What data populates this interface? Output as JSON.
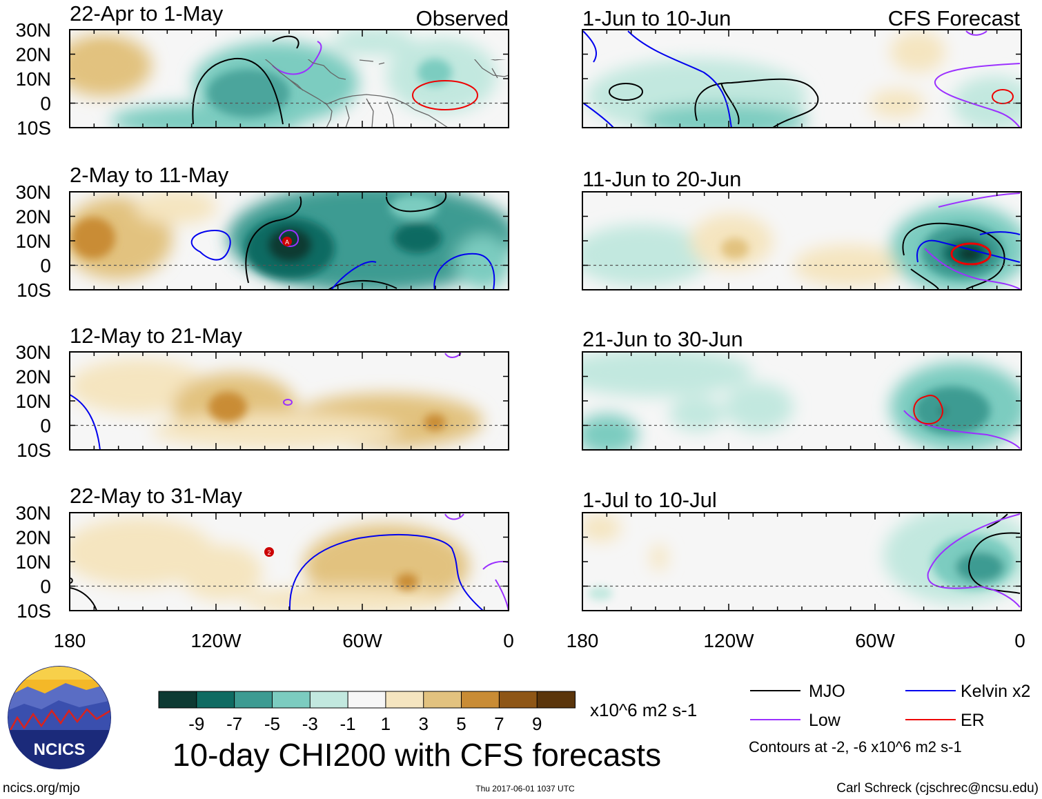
{
  "panels": [
    {
      "period": "22-Apr to 1-May",
      "tag": "Observed"
    },
    {
      "period": "2-May to 11-May",
      "tag": ""
    },
    {
      "period": "12-May to 21-May",
      "tag": ""
    },
    {
      "period": "22-May to 31-May",
      "tag": ""
    },
    {
      "period": "1-Jun to 10-Jun",
      "tag": "CFS Forecast"
    },
    {
      "period": "11-Jun to 20-Jun",
      "tag": ""
    },
    {
      "period": "21-Jun to 30-Jun",
      "tag": ""
    },
    {
      "period": "1-Jul to 10-Jul",
      "tag": ""
    }
  ],
  "lat_labels": [
    "30N",
    "20N",
    "10N",
    "0",
    "10S"
  ],
  "lon_labels": [
    "180",
    "120W",
    "60W",
    "0"
  ],
  "colorbar": {
    "colors": [
      "#0d3a33",
      "#0f6b62",
      "#3d9b92",
      "#7cccc0",
      "#c2e8df",
      "#f6f6f6",
      "#f5e5c0",
      "#e2c27f",
      "#c98c35",
      "#8e5616",
      "#5a350b"
    ],
    "labels": [
      "-9",
      "-7",
      "-5",
      "-3",
      "-1",
      "1",
      "3",
      "5",
      "7",
      "9"
    ],
    "units": "x10^6 m2 s-1"
  },
  "legend": {
    "items": [
      {
        "name": "MJO",
        "color": "#000000"
      },
      {
        "name": "Kelvin x2",
        "color": "#0000ee"
      },
      {
        "name": "Low",
        "color": "#9b30ff"
      },
      {
        "name": "ER",
        "color": "#ee0000"
      }
    ],
    "contour_note": "Contours at -2, -6 x10^6 m2 s-1"
  },
  "logo": {
    "text": "NCICS"
  },
  "title": "10-day CHI200 with CFS forecasts",
  "footer": {
    "url": "ncics.org/mjo",
    "timestamp": "Thu 2017-06-01 1037 UTC",
    "author": "Carl Schreck (cjschrec@ncsu.edu)"
  },
  "storm_markers": [
    "A",
    "2"
  ]
}
